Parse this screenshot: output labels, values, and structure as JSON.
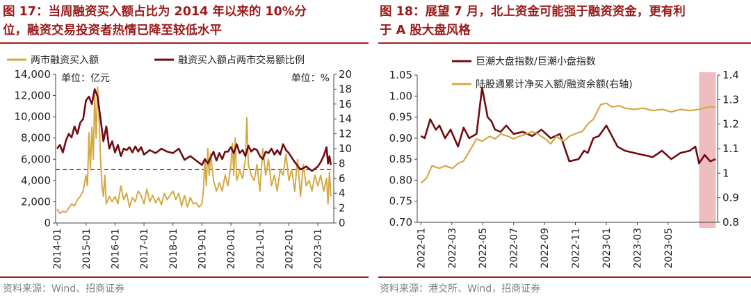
{
  "panels": [
    {
      "title_line1": "图 17：当周融资买入额占比为 2014 年以来的 10%分",
      "title_line2": "位，融资交易投资者热情已降至较低水平",
      "source": "资料来源：Wind、招商证券"
    },
    {
      "title_line1": "图 18：展望 7 月，北上资金可能强于融资资金，更有利",
      "title_line2": "于 A 股大盘风格",
      "source": "资料来源：港交所、Wind，招商证券"
    }
  ],
  "chart_data": [
    {
      "type": "line",
      "legend": [
        "两市融资买入额",
        "融资买入额占两市交易额比例"
      ],
      "legend_position": "top",
      "unit_left": "单位：亿元",
      "unit_right": "单位：%",
      "x_ticks": [
        "2014-01",
        "2015-01",
        "2016-01",
        "2017-01",
        "2018-01",
        "2019-01",
        "2020-01",
        "2021-01",
        "2022-01",
        "2023-01"
      ],
      "y_left": {
        "min": 0,
        "max": 14000,
        "ticks": [
          "0",
          "2,000",
          "4,000",
          "6,000",
          "8,000",
          "10,000",
          "12,000",
          "14,000"
        ]
      },
      "y_right": {
        "min": 0,
        "max": 20,
        "ticks": [
          "0",
          "2",
          "4",
          "6",
          "8",
          "10",
          "12",
          "14",
          "16",
          "18",
          "20"
        ]
      },
      "reference_line": {
        "axis": "right",
        "value": 7.2,
        "style": "dashed",
        "color": "#c00000"
      },
      "colors": {
        "financing_buy": "#d4a944",
        "ratio": "#6e0c12"
      },
      "series": [
        {
          "name": "两市融资买入额",
          "axis": "left",
          "x": [
            2014.0,
            2014.1,
            2014.2,
            2014.3,
            2014.4,
            2014.5,
            2014.6,
            2014.7,
            2014.8,
            2014.9,
            2015.0,
            2015.05,
            2015.1,
            2015.15,
            2015.2,
            2015.25,
            2015.3,
            2015.35,
            2015.4,
            2015.45,
            2015.5,
            2015.55,
            2015.6,
            2015.65,
            2015.7,
            2015.8,
            2015.9,
            2016.0,
            2016.1,
            2016.2,
            2016.3,
            2016.4,
            2016.5,
            2016.6,
            2016.7,
            2016.8,
            2016.9,
            2017.0,
            2017.1,
            2017.2,
            2017.3,
            2017.4,
            2017.5,
            2017.6,
            2017.7,
            2017.8,
            2017.9,
            2018.0,
            2018.1,
            2018.2,
            2018.3,
            2018.4,
            2018.5,
            2018.6,
            2018.7,
            2018.8,
            2018.9,
            2019.0,
            2019.05,
            2019.1,
            2019.15,
            2019.2,
            2019.25,
            2019.3,
            2019.4,
            2019.5,
            2019.6,
            2019.7,
            2019.8,
            2019.9,
            2020.0,
            2020.05,
            2020.1,
            2020.15,
            2020.2,
            2020.3,
            2020.4,
            2020.5,
            2020.55,
            2020.6,
            2020.7,
            2020.8,
            2020.9,
            2021.0,
            2021.1,
            2021.2,
            2021.3,
            2021.4,
            2021.5,
            2021.6,
            2021.7,
            2021.8,
            2021.9,
            2022.0,
            2022.1,
            2022.2,
            2022.3,
            2022.4,
            2022.5,
            2022.6,
            2022.7,
            2022.8,
            2022.9,
            2023.0,
            2023.1,
            2023.2,
            2023.3,
            2023.35,
            2023.4,
            2023.45
          ],
          "values": [
            1300,
            900,
            1100,
            1000,
            1400,
            1800,
            1600,
            2200,
            2500,
            3000,
            4500,
            3500,
            8500,
            5000,
            9000,
            6000,
            12000,
            8000,
            12800,
            10000,
            6000,
            3500,
            2500,
            4500,
            1800,
            2500,
            2000,
            2500,
            1800,
            3500,
            2200,
            2800,
            1500,
            2400,
            2000,
            3000,
            2600,
            1800,
            3200,
            2000,
            2600,
            1900,
            2400,
            1700,
            2800,
            2200,
            2600,
            3000,
            2200,
            2800,
            1600,
            2600,
            1500,
            2400,
            1800,
            1900,
            1500,
            1800,
            3000,
            6000,
            3500,
            7000,
            4500,
            6500,
            4000,
            3000,
            3800,
            3000,
            4500,
            3500,
            5500,
            7500,
            4500,
            8000,
            4000,
            5000,
            4200,
            6000,
            9900,
            5500,
            4500,
            4000,
            5500,
            3000,
            7000,
            4500,
            6000,
            3500,
            4500,
            3000,
            5000,
            4500,
            6500,
            4000,
            5000,
            3000,
            6000,
            2500,
            5500,
            3500,
            4000,
            3000,
            4500,
            3500,
            4500,
            3000,
            4200,
            1800,
            4800,
            2500
          ]
        },
        {
          "name": "融资买入额占两市交易额比例",
          "axis": "right",
          "x": [
            2014.0,
            2014.1,
            2014.2,
            2014.3,
            2014.4,
            2014.5,
            2014.6,
            2014.7,
            2014.8,
            2014.9,
            2015.0,
            2015.1,
            2015.2,
            2015.3,
            2015.4,
            2015.5,
            2015.6,
            2015.7,
            2015.8,
            2015.9,
            2016.0,
            2016.1,
            2016.2,
            2016.3,
            2016.4,
            2016.5,
            2016.6,
            2016.7,
            2016.8,
            2016.9,
            2017.0,
            2017.2,
            2017.4,
            2017.6,
            2017.8,
            2018.0,
            2018.2,
            2018.4,
            2018.6,
            2018.8,
            2019.0,
            2019.1,
            2019.2,
            2019.3,
            2019.4,
            2019.5,
            2019.6,
            2019.7,
            2019.8,
            2019.9,
            2020.0,
            2020.1,
            2020.2,
            2020.3,
            2020.4,
            2020.5,
            2020.6,
            2020.7,
            2020.8,
            2020.9,
            2021.0,
            2021.1,
            2021.2,
            2021.3,
            2021.4,
            2021.5,
            2021.6,
            2021.7,
            2021.8,
            2021.9,
            2022.0,
            2022.2,
            2022.4,
            2022.6,
            2022.8,
            2023.0,
            2023.1,
            2023.2,
            2023.3,
            2023.35,
            2023.4,
            2023.45
          ],
          "values": [
            10,
            10.5,
            9.5,
            11,
            12,
            11.5,
            13,
            12,
            13.5,
            14,
            16.5,
            17,
            16,
            18,
            17,
            14,
            11,
            13,
            10,
            11,
            9.5,
            10.5,
            9,
            10,
            9.8,
            10.2,
            9.5,
            10.3,
            9.6,
            10.2,
            9.2,
            9.8,
            9.4,
            10,
            9.6,
            9.4,
            10,
            8.5,
            9,
            8.4,
            7.8,
            8.6,
            8,
            8.8,
            9.6,
            8.4,
            9.4,
            8.6,
            9.6,
            9.6,
            10.2,
            9.4,
            10.6,
            9.4,
            9.8,
            9,
            10.4,
            9.6,
            10,
            9.8,
            9,
            8.6,
            9.6,
            9.4,
            10,
            9.2,
            9.8,
            9.2,
            10.6,
            9.8,
            9.4,
            8.2,
            7.2,
            7.6,
            7,
            7.6,
            8.2,
            9,
            10.2,
            8,
            9,
            7.8
          ]
        }
      ]
    },
    {
      "type": "line",
      "legend": [
        "巨潮大盘指数/巨潮小盘指数",
        "陆股通累计净买入额/融资余额(右轴)"
      ],
      "legend_position": "top-left",
      "x_ticks": [
        "2022-01",
        "2022-03",
        "2022-05",
        "2022-07",
        "2022-09",
        "2022-11",
        "2023-01",
        "2023-03",
        "2023-05"
      ],
      "y_left": {
        "min": 0.7,
        "max": 1.05,
        "ticks": [
          "0.70",
          "0.75",
          "0.80",
          "0.85",
          "0.90",
          "0.95",
          "1.00",
          "1.05"
        ]
      },
      "y_right": {
        "min": 0.8,
        "max": 1.4,
        "ticks": [
          "0.8",
          "0.9",
          "1",
          "1.1",
          "1.2",
          "1.3",
          "1.4"
        ]
      },
      "highlight": {
        "x_from": 2023.5,
        "x_to": 2023.59,
        "color": "#e8a7a9"
      },
      "colors": {
        "ratio_index": "#6e0c12",
        "northbound": "#d4a944"
      },
      "series": [
        {
          "name": "巨潮大盘指数/巨潮小盘指数",
          "axis": "left",
          "x": [
            2022.0,
            2022.02,
            2022.05,
            2022.08,
            2022.1,
            2022.13,
            2022.16,
            2022.2,
            2022.23,
            2022.26,
            2022.3,
            2022.33,
            2022.36,
            2022.38,
            2022.4,
            2022.43,
            2022.46,
            2022.5,
            2022.55,
            2022.6,
            2022.65,
            2022.7,
            2022.75,
            2022.8,
            2022.85,
            2022.88,
            2022.9,
            2022.93,
            2022.96,
            2023.0,
            2023.03,
            2023.06,
            2023.1,
            2023.15,
            2023.2,
            2023.25,
            2023.3,
            2023.35,
            2023.4,
            2023.45,
            2023.48,
            2023.5,
            2023.53,
            2023.56,
            2023.59
          ],
          "values": [
            0.905,
            0.9,
            0.945,
            0.92,
            0.93,
            0.9,
            0.92,
            0.88,
            0.925,
            0.9,
            0.91,
            1.02,
            0.95,
            0.94,
            0.92,
            0.915,
            0.93,
            0.91,
            0.915,
            0.905,
            0.92,
            0.9,
            0.91,
            0.845,
            0.85,
            0.87,
            0.865,
            0.9,
            0.905,
            0.93,
            0.905,
            0.88,
            0.87,
            0.865,
            0.86,
            0.855,
            0.87,
            0.85,
            0.865,
            0.87,
            0.88,
            0.84,
            0.86,
            0.845,
            0.85
          ]
        },
        {
          "name": "陆股通累计净买入额/融资余额(右轴)",
          "axis": "right",
          "x": [
            2022.0,
            2022.03,
            2022.06,
            2022.1,
            2022.13,
            2022.17,
            2022.2,
            2022.23,
            2022.27,
            2022.3,
            2022.33,
            2022.37,
            2022.4,
            2022.43,
            2022.47,
            2022.5,
            2022.53,
            2022.57,
            2022.6,
            2022.63,
            2022.67,
            2022.7,
            2022.73,
            2022.77,
            2022.8,
            2022.83,
            2022.87,
            2022.9,
            2022.93,
            2022.97,
            2023.0,
            2023.03,
            2023.07,
            2023.1,
            2023.15,
            2023.2,
            2023.25,
            2023.3,
            2023.35,
            2023.4,
            2023.45,
            2023.5,
            2023.55,
            2023.59
          ],
          "values": [
            0.96,
            0.98,
            1.03,
            1.02,
            1.03,
            1.02,
            1.04,
            1.05,
            1.1,
            1.14,
            1.13,
            1.15,
            1.14,
            1.16,
            1.15,
            1.14,
            1.15,
            1.16,
            1.17,
            1.16,
            1.14,
            1.12,
            1.15,
            1.13,
            1.15,
            1.16,
            1.17,
            1.2,
            1.22,
            1.28,
            1.285,
            1.27,
            1.275,
            1.265,
            1.26,
            1.265,
            1.255,
            1.26,
            1.25,
            1.26,
            1.255,
            1.26,
            1.27,
            1.27
          ]
        }
      ]
    }
  ]
}
